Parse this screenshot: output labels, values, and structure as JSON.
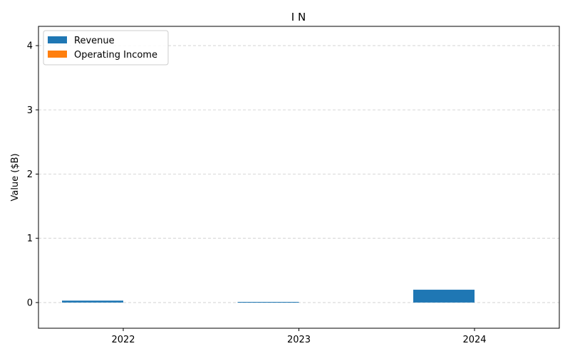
{
  "chart_data": {
    "type": "bar",
    "title": "I N",
    "xlabel": "",
    "ylabel": "Value ($B)",
    "categories": [
      "2022",
      "2023",
      "2024"
    ],
    "series": [
      {
        "name": "Revenue",
        "values": [
          0.03,
          0.01,
          0.2
        ],
        "color": "#1f77b4"
      },
      {
        "name": "Operating Income",
        "values": [
          0.0,
          0.0,
          0.0
        ],
        "color": "#ff7f0e"
      }
    ],
    "ylim": [
      -0.4,
      4.3
    ],
    "yticks": [
      "0",
      "1",
      "2",
      "3",
      "4"
    ],
    "grid": "y-dashed",
    "legend": "top-left"
  }
}
